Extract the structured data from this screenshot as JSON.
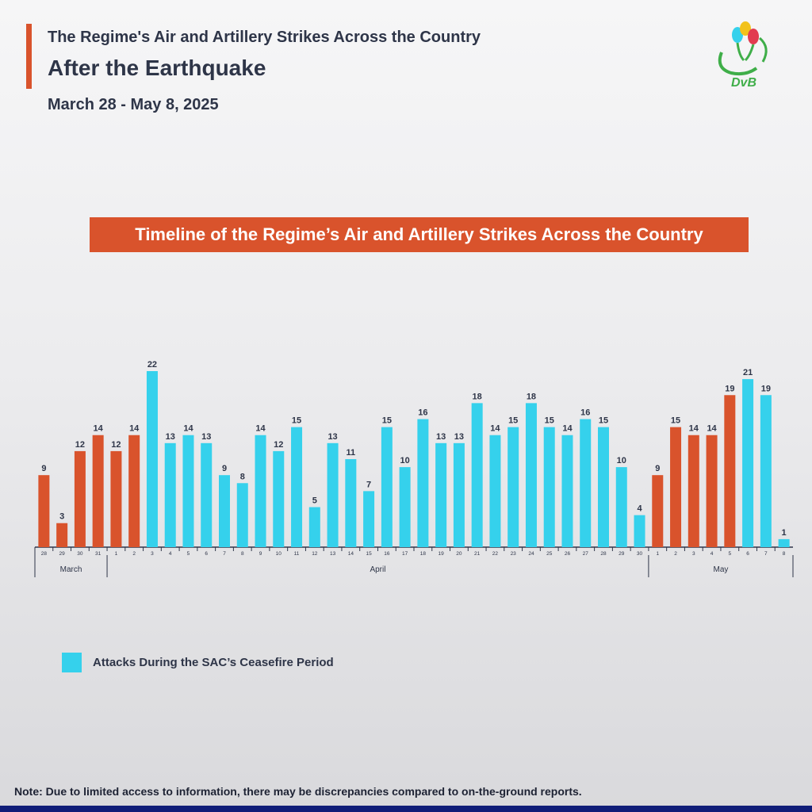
{
  "header": {
    "title_line1": "The Regime's Air and Artillery Strikes Across the Country",
    "title_line2": "After the Earthquake",
    "date_range": "March 28 - May 8, 2025"
  },
  "logo": {
    "text": "DvB",
    "icon": "dvb-logo-icon"
  },
  "chart_data": {
    "type": "bar",
    "title": "Timeline of the Regime’s Air and Artillery Strikes Across the Country",
    "categories": [
      "28",
      "29",
      "30",
      "31",
      "1",
      "2",
      "3",
      "4",
      "5",
      "6",
      "7",
      "8",
      "9",
      "10",
      "11",
      "12",
      "13",
      "14",
      "15",
      "16",
      "17",
      "18",
      "19",
      "20",
      "21",
      "22",
      "23",
      "24",
      "25",
      "26",
      "27",
      "28",
      "29",
      "30",
      "1",
      "2",
      "3",
      "4",
      "5",
      "6",
      "7",
      "8"
    ],
    "values": [
      9,
      3,
      12,
      14,
      12,
      14,
      22,
      13,
      14,
      13,
      9,
      8,
      14,
      12,
      15,
      5,
      13,
      11,
      7,
      15,
      10,
      16,
      13,
      13,
      18,
      14,
      15,
      18,
      15,
      14,
      16,
      15,
      10,
      4,
      9,
      15,
      14,
      14,
      19,
      21,
      19,
      1
    ],
    "ceasefire": [
      false,
      false,
      false,
      false,
      false,
      false,
      true,
      true,
      true,
      true,
      true,
      true,
      true,
      true,
      true,
      true,
      true,
      true,
      true,
      true,
      true,
      true,
      true,
      true,
      true,
      true,
      true,
      true,
      true,
      true,
      true,
      true,
      true,
      true,
      false,
      false,
      false,
      false,
      false,
      true,
      true,
      true
    ],
    "months": [
      {
        "label": "March",
        "start": 0,
        "end": 3
      },
      {
        "label": "April",
        "start": 4,
        "end": 33
      },
      {
        "label": "May",
        "start": 34,
        "end": 41
      }
    ],
    "colors": {
      "strike": "#d9532c",
      "ceasefire": "#35d1ec",
      "accent": "#d9532c",
      "text": "#2e3548"
    },
    "ylim": [
      0,
      22
    ],
    "grid": false
  },
  "legend": {
    "label": "Attacks During the SAC’s Ceasefire Period"
  },
  "note": "Note: Due to limited access to information, there may be discrepancies compared to on-the-ground reports."
}
